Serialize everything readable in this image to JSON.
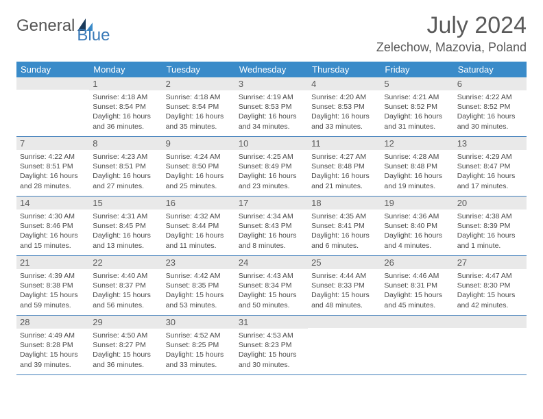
{
  "logo": {
    "part1": "General",
    "part2": "Blue"
  },
  "header": {
    "title": "July 2024",
    "location": "Zelechow, Mazovia, Poland"
  },
  "colors": {
    "header_bg": "#3a8bc9",
    "header_text": "#ffffff",
    "daynum_bg": "#e9e9e9",
    "border": "#3a7ab8",
    "body_text": "#4a4a4a",
    "logo_blue": "#3a7ab8",
    "logo_dark": "#1a3a5a"
  },
  "day_names": [
    "Sunday",
    "Monday",
    "Tuesday",
    "Wednesday",
    "Thursday",
    "Friday",
    "Saturday"
  ],
  "weeks": [
    [
      {
        "num": "",
        "sunrise": "",
        "sunset": "",
        "daylight": ""
      },
      {
        "num": "1",
        "sunrise": "Sunrise: 4:18 AM",
        "sunset": "Sunset: 8:54 PM",
        "daylight": "Daylight: 16 hours and 36 minutes."
      },
      {
        "num": "2",
        "sunrise": "Sunrise: 4:18 AM",
        "sunset": "Sunset: 8:54 PM",
        "daylight": "Daylight: 16 hours and 35 minutes."
      },
      {
        "num": "3",
        "sunrise": "Sunrise: 4:19 AM",
        "sunset": "Sunset: 8:53 PM",
        "daylight": "Daylight: 16 hours and 34 minutes."
      },
      {
        "num": "4",
        "sunrise": "Sunrise: 4:20 AM",
        "sunset": "Sunset: 8:53 PM",
        "daylight": "Daylight: 16 hours and 33 minutes."
      },
      {
        "num": "5",
        "sunrise": "Sunrise: 4:21 AM",
        "sunset": "Sunset: 8:52 PM",
        "daylight": "Daylight: 16 hours and 31 minutes."
      },
      {
        "num": "6",
        "sunrise": "Sunrise: 4:22 AM",
        "sunset": "Sunset: 8:52 PM",
        "daylight": "Daylight: 16 hours and 30 minutes."
      }
    ],
    [
      {
        "num": "7",
        "sunrise": "Sunrise: 4:22 AM",
        "sunset": "Sunset: 8:51 PM",
        "daylight": "Daylight: 16 hours and 28 minutes."
      },
      {
        "num": "8",
        "sunrise": "Sunrise: 4:23 AM",
        "sunset": "Sunset: 8:51 PM",
        "daylight": "Daylight: 16 hours and 27 minutes."
      },
      {
        "num": "9",
        "sunrise": "Sunrise: 4:24 AM",
        "sunset": "Sunset: 8:50 PM",
        "daylight": "Daylight: 16 hours and 25 minutes."
      },
      {
        "num": "10",
        "sunrise": "Sunrise: 4:25 AM",
        "sunset": "Sunset: 8:49 PM",
        "daylight": "Daylight: 16 hours and 23 minutes."
      },
      {
        "num": "11",
        "sunrise": "Sunrise: 4:27 AM",
        "sunset": "Sunset: 8:48 PM",
        "daylight": "Daylight: 16 hours and 21 minutes."
      },
      {
        "num": "12",
        "sunrise": "Sunrise: 4:28 AM",
        "sunset": "Sunset: 8:48 PM",
        "daylight": "Daylight: 16 hours and 19 minutes."
      },
      {
        "num": "13",
        "sunrise": "Sunrise: 4:29 AM",
        "sunset": "Sunset: 8:47 PM",
        "daylight": "Daylight: 16 hours and 17 minutes."
      }
    ],
    [
      {
        "num": "14",
        "sunrise": "Sunrise: 4:30 AM",
        "sunset": "Sunset: 8:46 PM",
        "daylight": "Daylight: 16 hours and 15 minutes."
      },
      {
        "num": "15",
        "sunrise": "Sunrise: 4:31 AM",
        "sunset": "Sunset: 8:45 PM",
        "daylight": "Daylight: 16 hours and 13 minutes."
      },
      {
        "num": "16",
        "sunrise": "Sunrise: 4:32 AM",
        "sunset": "Sunset: 8:44 PM",
        "daylight": "Daylight: 16 hours and 11 minutes."
      },
      {
        "num": "17",
        "sunrise": "Sunrise: 4:34 AM",
        "sunset": "Sunset: 8:43 PM",
        "daylight": "Daylight: 16 hours and 8 minutes."
      },
      {
        "num": "18",
        "sunrise": "Sunrise: 4:35 AM",
        "sunset": "Sunset: 8:41 PM",
        "daylight": "Daylight: 16 hours and 6 minutes."
      },
      {
        "num": "19",
        "sunrise": "Sunrise: 4:36 AM",
        "sunset": "Sunset: 8:40 PM",
        "daylight": "Daylight: 16 hours and 4 minutes."
      },
      {
        "num": "20",
        "sunrise": "Sunrise: 4:38 AM",
        "sunset": "Sunset: 8:39 PM",
        "daylight": "Daylight: 16 hours and 1 minute."
      }
    ],
    [
      {
        "num": "21",
        "sunrise": "Sunrise: 4:39 AM",
        "sunset": "Sunset: 8:38 PM",
        "daylight": "Daylight: 15 hours and 59 minutes."
      },
      {
        "num": "22",
        "sunrise": "Sunrise: 4:40 AM",
        "sunset": "Sunset: 8:37 PM",
        "daylight": "Daylight: 15 hours and 56 minutes."
      },
      {
        "num": "23",
        "sunrise": "Sunrise: 4:42 AM",
        "sunset": "Sunset: 8:35 PM",
        "daylight": "Daylight: 15 hours and 53 minutes."
      },
      {
        "num": "24",
        "sunrise": "Sunrise: 4:43 AM",
        "sunset": "Sunset: 8:34 PM",
        "daylight": "Daylight: 15 hours and 50 minutes."
      },
      {
        "num": "25",
        "sunrise": "Sunrise: 4:44 AM",
        "sunset": "Sunset: 8:33 PM",
        "daylight": "Daylight: 15 hours and 48 minutes."
      },
      {
        "num": "26",
        "sunrise": "Sunrise: 4:46 AM",
        "sunset": "Sunset: 8:31 PM",
        "daylight": "Daylight: 15 hours and 45 minutes."
      },
      {
        "num": "27",
        "sunrise": "Sunrise: 4:47 AM",
        "sunset": "Sunset: 8:30 PM",
        "daylight": "Daylight: 15 hours and 42 minutes."
      }
    ],
    [
      {
        "num": "28",
        "sunrise": "Sunrise: 4:49 AM",
        "sunset": "Sunset: 8:28 PM",
        "daylight": "Daylight: 15 hours and 39 minutes."
      },
      {
        "num": "29",
        "sunrise": "Sunrise: 4:50 AM",
        "sunset": "Sunset: 8:27 PM",
        "daylight": "Daylight: 15 hours and 36 minutes."
      },
      {
        "num": "30",
        "sunrise": "Sunrise: 4:52 AM",
        "sunset": "Sunset: 8:25 PM",
        "daylight": "Daylight: 15 hours and 33 minutes."
      },
      {
        "num": "31",
        "sunrise": "Sunrise: 4:53 AM",
        "sunset": "Sunset: 8:23 PM",
        "daylight": "Daylight: 15 hours and 30 minutes."
      },
      {
        "num": "",
        "sunrise": "",
        "sunset": "",
        "daylight": ""
      },
      {
        "num": "",
        "sunrise": "",
        "sunset": "",
        "daylight": ""
      },
      {
        "num": "",
        "sunrise": "",
        "sunset": "",
        "daylight": ""
      }
    ]
  ]
}
